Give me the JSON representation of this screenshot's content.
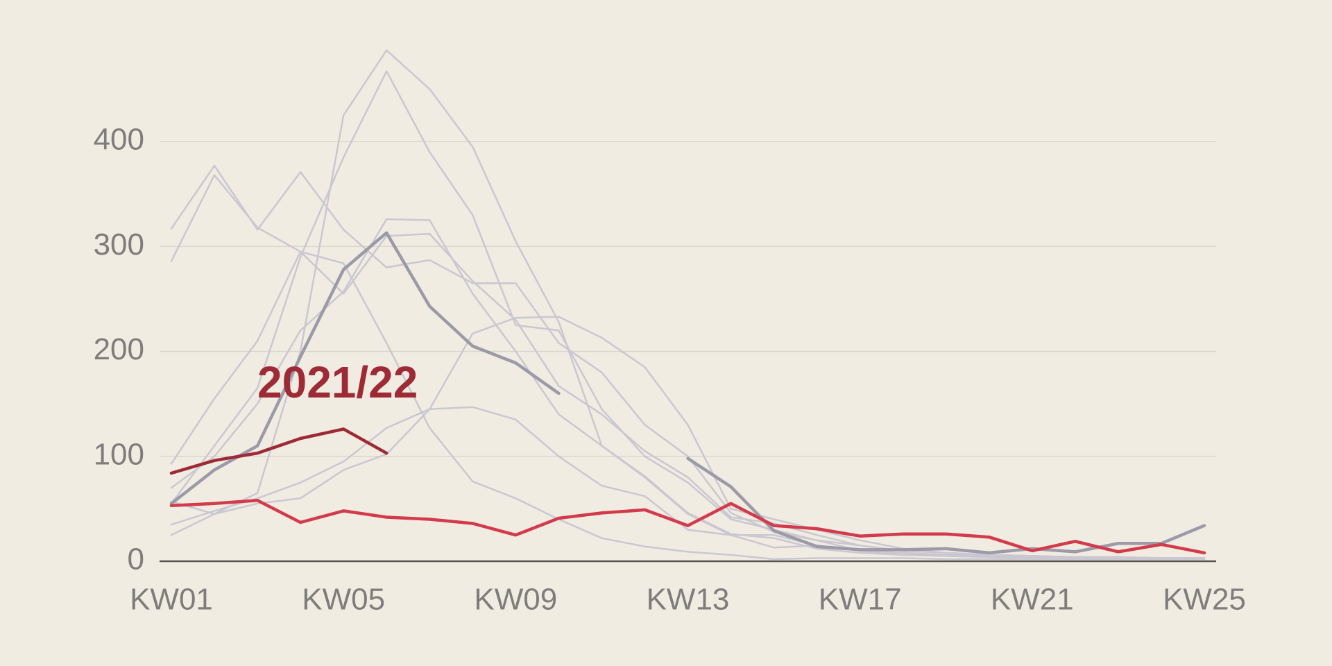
{
  "chart_data": {
    "type": "line",
    "annotation": "2021/22",
    "categories": [
      "KW01",
      null,
      null,
      null,
      "KW05",
      null,
      null,
      null,
      "KW09",
      null,
      null,
      null,
      "KW13",
      null,
      null,
      null,
      "KW17",
      null,
      null,
      null,
      "KW21",
      null,
      null,
      null,
      "KW25"
    ],
    "ylim": [
      0,
      400
    ],
    "yticks": [
      0,
      100,
      200,
      300,
      400
    ],
    "grid": true,
    "series": [
      {
        "color": "#cac7d1",
        "values": [
          317,
          377,
          316,
          371,
          316,
          280,
          287,
          265,
          265,
          208,
          180,
          130,
          100,
          46,
          28,
          20,
          10,
          6,
          5,
          4,
          4,
          3,
          3,
          3,
          3
        ]
      },
      {
        "color": "#cac7d1",
        "values": [
          286,
          368,
          318,
          295,
          284,
          208,
          127,
          76,
          60,
          40,
          22,
          14,
          9,
          6,
          2,
          3,
          3,
          3,
          2,
          2,
          2,
          2,
          2,
          2,
          2
        ]
      },
      {
        "color": "#cac7d1",
        "values": [
          25,
          45,
          65,
          200,
          425,
          487,
          450,
          395,
          305,
          228,
          110,
          81,
          46,
          26,
          22,
          12,
          8,
          6,
          5,
          4,
          3,
          3,
          3,
          3,
          3
        ]
      },
      {
        "color": "#cac7d1",
        "values": [
          55,
          110,
          165,
          290,
          385,
          467,
          390,
          330,
          225,
          220,
          145,
          100,
          75,
          40,
          30,
          20,
          15,
          10,
          8,
          6,
          5,
          4,
          4,
          3,
          3
        ]
      },
      {
        "color": "#cac7d1",
        "values": [
          70,
          100,
          150,
          220,
          257,
          326,
          325,
          255,
          200,
          140,
          110,
          80,
          45,
          25,
          25,
          15,
          10,
          8,
          6,
          5,
          4,
          4,
          3,
          3,
          3
        ]
      },
      {
        "color": "#cac7d1",
        "values": [
          93,
          155,
          210,
          295,
          255,
          310,
          312,
          267,
          230,
          167,
          140,
          105,
          80,
          42,
          36,
          25,
          15,
          10,
          8,
          6,
          5,
          4,
          4,
          3,
          3
        ]
      },
      {
        "color": "#cac7d1",
        "values": [
          35,
          48,
          60,
          75,
          95,
          127,
          145,
          147,
          135,
          100,
          72,
          62,
          30,
          25,
          13,
          15,
          10,
          8,
          6,
          5,
          4,
          4,
          3,
          3,
          3
        ]
      },
      {
        "color": "#cac7d1",
        "values": [
          57,
          45,
          55,
          60,
          87,
          102,
          145,
          217,
          232,
          233,
          213,
          185,
          130,
          50,
          40,
          30,
          20,
          12,
          8,
          6,
          5,
          4,
          4,
          3,
          3
        ]
      },
      {
        "color": "#9c99a8",
        "values": [
          55,
          87,
          110,
          195,
          278,
          313,
          243,
          205,
          189,
          160,
          null,
          null,
          98,
          71,
          29,
          14,
          11,
          11,
          12,
          8,
          12,
          9,
          17,
          17,
          34
        ]
      },
      {
        "color": "#9e2a35",
        "values": [
          84,
          96,
          103,
          117,
          126,
          103,
          null,
          null,
          null,
          null,
          null,
          null,
          null,
          null,
          null,
          null,
          null,
          null,
          null,
          null,
          null,
          null,
          null,
          null,
          null
        ]
      },
      {
        "color": "#d33a4b",
        "values": [
          53,
          55,
          58,
          37,
          48,
          42,
          40,
          36,
          25,
          41,
          46,
          49,
          34,
          55,
          34,
          31,
          24,
          26,
          26,
          23,
          10,
          19,
          9,
          16,
          8
        ]
      }
    ]
  }
}
